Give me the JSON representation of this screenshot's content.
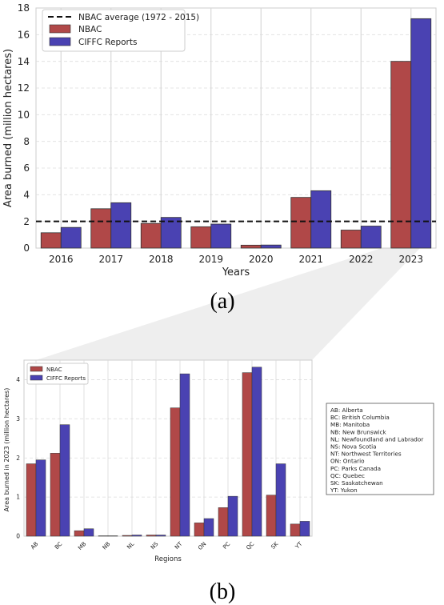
{
  "chart_data": [
    {
      "panel_label": "(a)",
      "type": "bar",
      "xlabel": "Years",
      "ylabel": "Area burned (million hectares)",
      "ylim": [
        0,
        18
      ],
      "yticks": [
        "0",
        "2",
        "4",
        "6",
        "8",
        "10",
        "12",
        "14",
        "16",
        "18"
      ],
      "categories": [
        "2016",
        "2017",
        "2018",
        "2019",
        "2020",
        "2021",
        "2022",
        "2023"
      ],
      "series": [
        {
          "name": "NBAC",
          "color": "#b04848",
          "values": [
            1.15,
            2.95,
            1.85,
            1.6,
            0.22,
            3.8,
            1.35,
            14.0
          ]
        },
        {
          "name": "CIFFC Reports",
          "color": "#4a42b2",
          "values": [
            1.55,
            3.4,
            2.3,
            1.8,
            0.23,
            4.3,
            1.65,
            17.2
          ]
        }
      ],
      "reference_line": {
        "name": "NBAC average (1972 - 2015)",
        "value": 2.0
      },
      "legend_position": "top-left",
      "grid": true
    },
    {
      "panel_label": "(b)",
      "type": "bar",
      "xlabel": "Regions",
      "ylabel": "Area burned in 2023 (million hectares)",
      "ylim": [
        0,
        4.5
      ],
      "yticks": [
        "0",
        "1",
        "2",
        "3",
        "4"
      ],
      "categories": [
        "AB",
        "BC",
        "MB",
        "NB",
        "NL",
        "NS",
        "NT",
        "ON",
        "PC",
        "QC",
        "SK",
        "YT"
      ],
      "series": [
        {
          "name": "NBAC",
          "color": "#b04848",
          "values": [
            1.85,
            2.12,
            0.14,
            0.01,
            0.02,
            0.03,
            3.28,
            0.34,
            0.73,
            4.18,
            1.05,
            0.31
          ]
        },
        {
          "name": "CIFFC Reports",
          "color": "#4a42b2",
          "values": [
            1.95,
            2.85,
            0.19,
            0.01,
            0.03,
            0.03,
            4.15,
            0.45,
            1.02,
            4.32,
            1.85,
            0.38
          ]
        }
      ],
      "legend_position": "top-left",
      "grid": true,
      "region_key": [
        "AB: Alberta",
        "BC: British Columbia",
        "MB: Manitoba",
        "NB: New Brunswick",
        "NL: Newfoundland and Labrador",
        "NS: Nova Scotia",
        "NT: Northwest Territories",
        "ON: Ontario",
        "PC: Parks Canada",
        "QC: Quebec",
        "SK: Saskatchewan",
        "YT: Yukon"
      ]
    }
  ]
}
